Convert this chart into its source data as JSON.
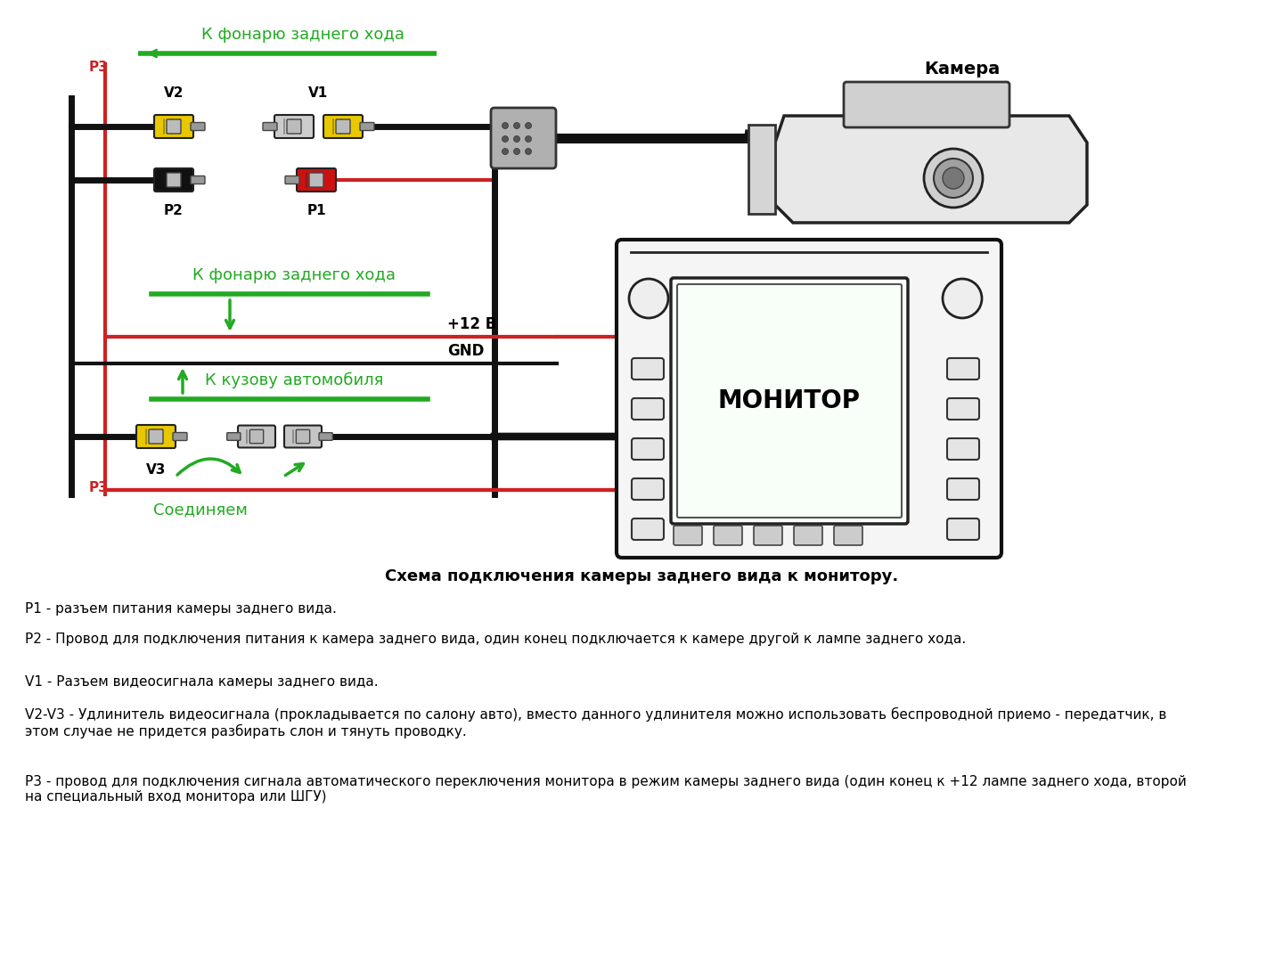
{
  "bg_color": "#ffffff",
  "green_color": "#22aa22",
  "red_color": "#cc2222",
  "black_color": "#111111",
  "yellow_color": "#e8c800",
  "gray_color": "#aaaaaa",
  "text_color": "#000000",
  "label_p1": "P1",
  "label_p2": "P2",
  "label_p3": "P3",
  "label_v1": "V1",
  "label_v2": "V2",
  "label_v3": "V3",
  "label_camera": "Камера",
  "label_monitor": "МОНИТОР",
  "label_top_green": "К фонарю заднего хода",
  "label_mid_green": "К фонарю заднего хода",
  "label_body": "К кузову автомобиля",
  "label_soedinyaem": "Соединяем",
  "label_12v": "+12 В",
  "label_gnd": "GND",
  "desc_title": "Схема подключения камеры заднего вида к монитору.",
  "desc_p1": "P1 - разъем питания камеры заднего вида.",
  "desc_p2": "P2 - Провод для подключения питания к камера заднего вида, один конец подключается к камере другой к лампе заднего хода.",
  "desc_v1": "V1 - Разъем видеосигнала камеры заднего вида.",
  "desc_v2v3": "V2-V3 - Удлинитель видеосигнала (прокладывается по салону авто), вместо данного удлинителя можно использовать беспроводной приемо - передатчик, в\nэтом случае не придется разбирать слон и тянуть проводку.",
  "desc_p3": "Р3 - провод для подключения сигнала автоматического переключения монитора в режим камеры заднего вида (один конец к +12 лампе заднего хода, второй\nна специальный вход монитора или ШГУ)"
}
